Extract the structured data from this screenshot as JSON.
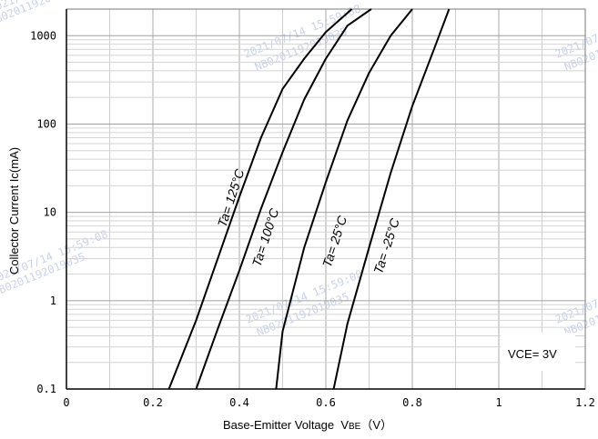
{
  "chart_data": {
    "type": "line",
    "title": "",
    "xlabel": "Base-Emitter Voltage  V",
    "xlabel_sub": "BE",
    "xlabel_unit": "（V）",
    "ylabel": "Collector Current   Ic(mA)",
    "xlim": [
      0,
      1.2
    ],
    "ylim": [
      0.1,
      2000
    ],
    "y_scale": "log",
    "grid": true,
    "x_ticks": [
      0,
      0.2,
      0.4,
      0.6,
      0.8,
      1,
      1.2
    ],
    "x_tick_labels": [
      "0",
      "0.2",
      "0.4",
      "0.6",
      "0.8",
      "1",
      "1.2"
    ],
    "y_ticks": [
      0.1,
      1,
      10,
      100,
      1000
    ],
    "y_tick_labels": [
      "0.1",
      "1",
      "10",
      "100",
      "1000"
    ],
    "series": [
      {
        "name": "Ta= 125°C",
        "label_at": [
          0.39,
          14
        ],
        "points": [
          [
            0.237,
            0.1
          ],
          [
            0.3,
            0.6
          ],
          [
            0.35,
            3
          ],
          [
            0.4,
            15
          ],
          [
            0.45,
            70
          ],
          [
            0.5,
            250
          ],
          [
            0.55,
            550
          ],
          [
            0.6,
            1100
          ],
          [
            0.66,
            2000
          ]
        ]
      },
      {
        "name": "Ta= 100°C",
        "label_at": [
          0.47,
          5
        ],
        "points": [
          [
            0.3,
            0.1
          ],
          [
            0.35,
            0.48
          ],
          [
            0.4,
            2.2
          ],
          [
            0.45,
            11
          ],
          [
            0.5,
            48
          ],
          [
            0.55,
            190
          ],
          [
            0.6,
            550
          ],
          [
            0.65,
            1300
          ],
          [
            0.705,
            2000
          ]
        ]
      },
      {
        "name": "Ta= 25°C",
        "label_at": [
          0.63,
          4.5
        ],
        "points": [
          [
            0.485,
            0.1
          ],
          [
            0.5,
            0.45
          ],
          [
            0.55,
            4
          ],
          [
            0.6,
            22
          ],
          [
            0.65,
            110
          ],
          [
            0.7,
            380
          ],
          [
            0.75,
            1000
          ],
          [
            0.8,
            2000
          ]
        ]
      },
      {
        "name": "Ta= -25°C",
        "label_at": [
          0.75,
          4
        ],
        "points": [
          [
            0.618,
            0.1
          ],
          [
            0.65,
            0.55
          ],
          [
            0.7,
            4
          ],
          [
            0.75,
            28
          ],
          [
            0.8,
            160
          ],
          [
            0.85,
            700
          ],
          [
            0.885,
            2000
          ]
        ]
      }
    ],
    "annotation": "VCE= 3V",
    "watermarks": [
      "2021/07/14 15:59:08",
      "NB0201192019035",
      "2021/07/14 15:59:08",
      "NB0201192019035",
      "2021/07/14 15:59:08",
      "NB0201192019035",
      "2021/07/14 15:59:08",
      "NB0201192019035"
    ]
  }
}
